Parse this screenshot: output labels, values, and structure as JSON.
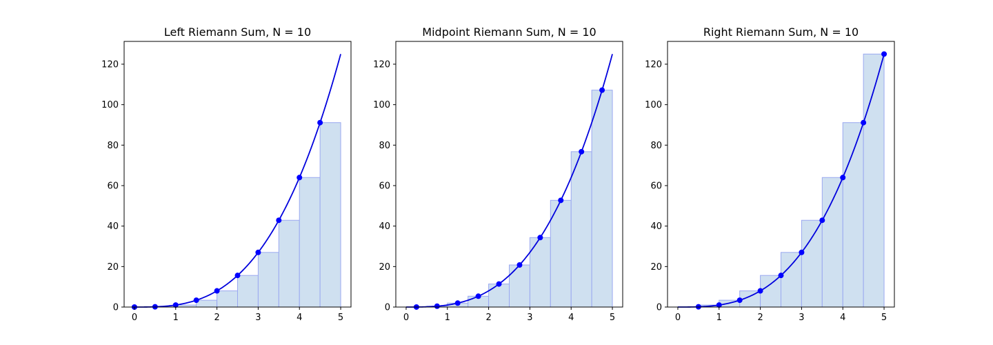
{
  "colors": {
    "curve": "#0000dd",
    "point": "#0000ff",
    "bar_fill": "#cfe0f0",
    "bar_edge": "#9aa8f0",
    "axes": "#000000"
  },
  "chart_data": [
    {
      "type": "bar",
      "title": "Left Riemann Sum, N = 10",
      "function": "x^3",
      "curve": {
        "x_start": 0,
        "x_end": 5
      },
      "xlim": [
        -0.25,
        5.25
      ],
      "ylim": [
        0,
        131.25
      ],
      "xticks": [
        0,
        1,
        2,
        3,
        4,
        5
      ],
      "yticks": [
        0,
        20,
        40,
        60,
        80,
        100,
        120
      ],
      "grid": false,
      "bar_width": 0.5,
      "bars": {
        "left_edges": [
          0,
          0.5,
          1,
          1.5,
          2,
          2.5,
          3,
          3.5,
          4,
          4.5
        ],
        "heights": [
          0,
          0.125,
          1,
          3.375,
          8,
          15.625,
          27,
          42.875,
          64,
          91.125
        ]
      },
      "points": {
        "x": [
          0,
          0.5,
          1,
          1.5,
          2,
          2.5,
          3,
          3.5,
          4,
          4.5
        ],
        "y": [
          0,
          0.125,
          1,
          3.375,
          8,
          15.625,
          27,
          42.875,
          64,
          91.125
        ]
      }
    },
    {
      "type": "bar",
      "title": "Midpoint Riemann Sum, N = 10",
      "function": "x^3",
      "curve": {
        "x_start": 0,
        "x_end": 5
      },
      "xlim": [
        -0.25,
        5.25
      ],
      "ylim": [
        0,
        131.25
      ],
      "xticks": [
        0,
        1,
        2,
        3,
        4,
        5
      ],
      "yticks": [
        0,
        20,
        40,
        60,
        80,
        100,
        120
      ],
      "grid": false,
      "bar_width": 0.5,
      "bars": {
        "left_edges": [
          0,
          0.5,
          1,
          1.5,
          2,
          2.5,
          3,
          3.5,
          4,
          4.5
        ],
        "heights": [
          0.016,
          0.422,
          1.953,
          5.359,
          11.391,
          20.797,
          34.328,
          52.734,
          76.766,
          107.172
        ]
      },
      "points": {
        "x": [
          0.25,
          0.75,
          1.25,
          1.75,
          2.25,
          2.75,
          3.25,
          3.75,
          4.25,
          4.75
        ],
        "y": [
          0.016,
          0.422,
          1.953,
          5.359,
          11.391,
          20.797,
          34.328,
          52.734,
          76.766,
          107.172
        ]
      }
    },
    {
      "type": "bar",
      "title": "Right Riemann Sum, N = 10",
      "function": "x^3",
      "curve": {
        "x_start": 0,
        "x_end": 5
      },
      "xlim": [
        -0.25,
        5.25
      ],
      "ylim": [
        0,
        131.25
      ],
      "xticks": [
        0,
        1,
        2,
        3,
        4,
        5
      ],
      "yticks": [
        0,
        20,
        40,
        60,
        80,
        100,
        120
      ],
      "grid": false,
      "bar_width": 0.5,
      "bars": {
        "left_edges": [
          0,
          0.5,
          1,
          1.5,
          2,
          2.5,
          3,
          3.5,
          4,
          4.5
        ],
        "heights": [
          0.125,
          1,
          3.375,
          8,
          15.625,
          27,
          42.875,
          64,
          91.125,
          125
        ]
      },
      "points": {
        "x": [
          0.5,
          1,
          1.5,
          2,
          2.5,
          3,
          3.5,
          4,
          4.5,
          5
        ],
        "y": [
          0.125,
          1,
          3.375,
          8,
          15.625,
          27,
          42.875,
          64,
          91.125,
          125
        ]
      }
    }
  ]
}
